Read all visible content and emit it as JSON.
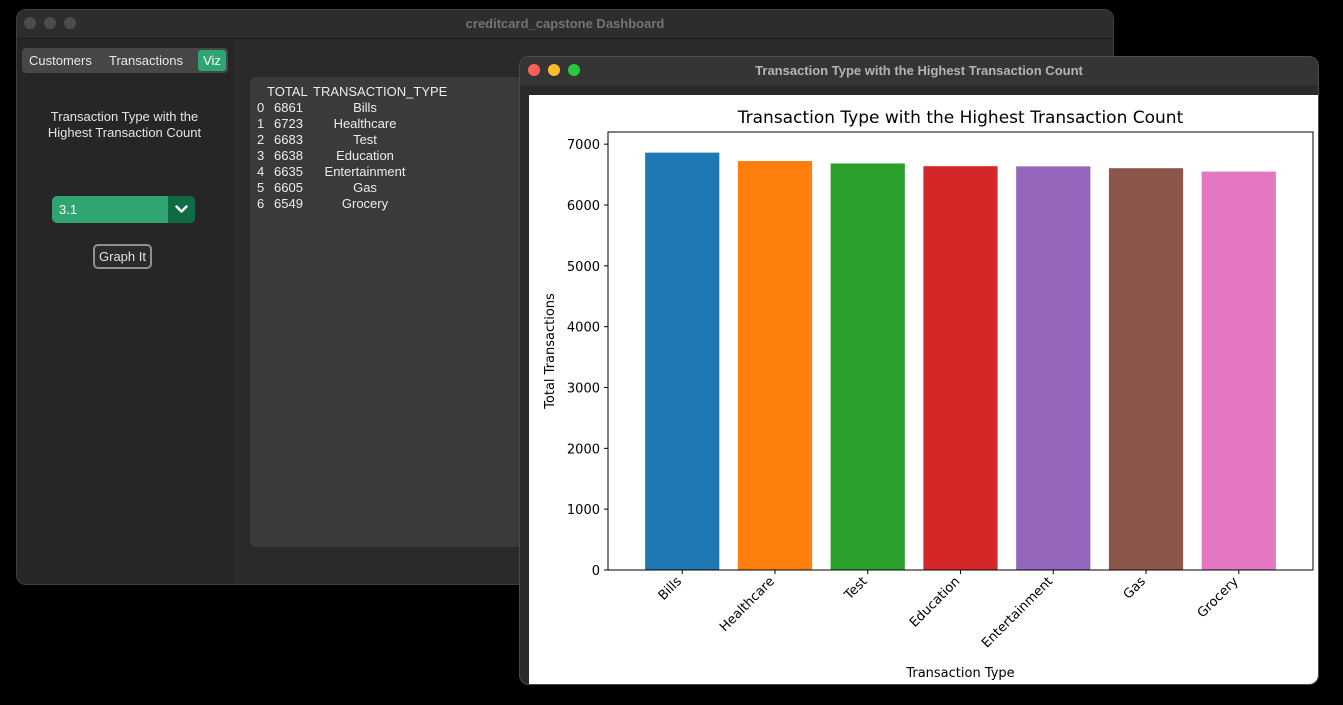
{
  "main_window": {
    "title": "creditcard_capstone Dashboard",
    "tabs": [
      {
        "label": "Customers",
        "active": false
      },
      {
        "label": "Transactions",
        "active": false
      },
      {
        "label": "Viz",
        "active": true
      }
    ],
    "viz": {
      "heading": "Transaction Type with the Highest Transaction Count",
      "dropdown_value": "3.1",
      "graph_button_label": "Graph It"
    },
    "output_table": {
      "headers": [
        "TOTAL",
        "TRANSACTION_TYPE"
      ],
      "rows": [
        {
          "index": "0",
          "total": "6861",
          "type": "Bills"
        },
        {
          "index": "1",
          "total": "6723",
          "type": "Healthcare"
        },
        {
          "index": "2",
          "total": "6683",
          "type": "Test"
        },
        {
          "index": "3",
          "total": "6638",
          "type": "Education"
        },
        {
          "index": "4",
          "total": "6635",
          "type": "Entertainment"
        },
        {
          "index": "5",
          "total": "6605",
          "type": "Gas"
        },
        {
          "index": "6",
          "total": "6549",
          "type": "Grocery"
        }
      ]
    },
    "accent_color": "#2fa572"
  },
  "chart_window": {
    "title": "Transaction Type with the Highest Transaction Count"
  },
  "chart_data": {
    "type": "bar",
    "title": "Transaction Type with the Highest Transaction Count",
    "xlabel": "Transaction Type",
    "ylabel": "Total Transactions",
    "categories": [
      "Bills",
      "Healthcare",
      "Test",
      "Education",
      "Entertainment",
      "Gas",
      "Grocery"
    ],
    "values": [
      6861,
      6723,
      6683,
      6638,
      6635,
      6605,
      6549
    ],
    "colors": [
      "#1f77b4",
      "#ff7f0e",
      "#2ca02c",
      "#d62728",
      "#9467bd",
      "#8c564b",
      "#e377c2"
    ],
    "ylim": [
      0,
      7200
    ],
    "yticks": [
      0,
      1000,
      2000,
      3000,
      4000,
      5000,
      6000,
      7000
    ],
    "grid": false,
    "legend": "none"
  }
}
